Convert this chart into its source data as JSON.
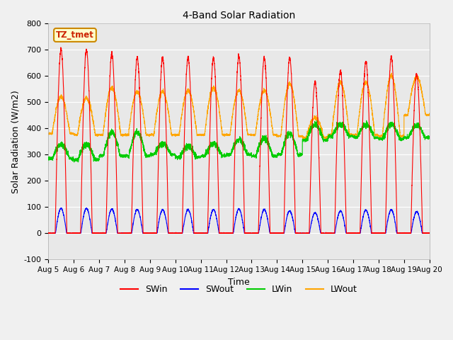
{
  "title": "4-Band Solar Radiation",
  "xlabel": "Time",
  "ylabel": "Solar Radiation (W/m2)",
  "ylim": [
    -100,
    800
  ],
  "xlim": [
    0,
    15
  ],
  "xtick_labels": [
    "Aug 5",
    "Aug 6",
    "Aug 7",
    "Aug 8",
    "Aug 9",
    "Aug 10",
    "Aug 11",
    "Aug 12",
    "Aug 13",
    "Aug 14",
    "Aug 15",
    "Aug 16",
    "Aug 17",
    "Aug 18",
    "Aug 19",
    "Aug 20"
  ],
  "ytick_values": [
    -100,
    0,
    100,
    200,
    300,
    400,
    500,
    600,
    700,
    800
  ],
  "legend_label": "TZ_tmet",
  "series_labels": [
    "SWin",
    "SWout",
    "LWin",
    "LWout"
  ],
  "series_colors": [
    "#ff0000",
    "#0000ff",
    "#00cc00",
    "#ffa500"
  ],
  "fig_bg_color": "#f0f0f0",
  "plot_bg_color": "#e8e8e8",
  "grid_color": "#ffffff",
  "n_days": 15,
  "pts_per_day": 288,
  "SWin_peaks": [
    700,
    700,
    685,
    670,
    670,
    670,
    670,
    675,
    670,
    670,
    575,
    620,
    655,
    670,
    605
  ],
  "SWout_peaks": [
    95,
    95,
    92,
    90,
    90,
    90,
    90,
    92,
    90,
    85,
    78,
    85,
    88,
    90,
    82
  ],
  "LWout_peaks": [
    520,
    515,
    555,
    540,
    540,
    545,
    555,
    545,
    545,
    570,
    440,
    575,
    575,
    600,
    595
  ],
  "LWout_night": [
    380,
    375,
    375,
    375,
    375,
    375,
    375,
    375,
    375,
    370,
    365,
    375,
    375,
    370,
    450
  ],
  "LWin_day_peak": [
    340,
    340,
    385,
    385,
    340,
    330,
    340,
    355,
    360,
    380,
    415,
    415,
    415,
    415,
    410
  ],
  "LWin_night": [
    285,
    280,
    295,
    295,
    300,
    290,
    295,
    300,
    295,
    300,
    355,
    370,
    365,
    360,
    365
  ]
}
